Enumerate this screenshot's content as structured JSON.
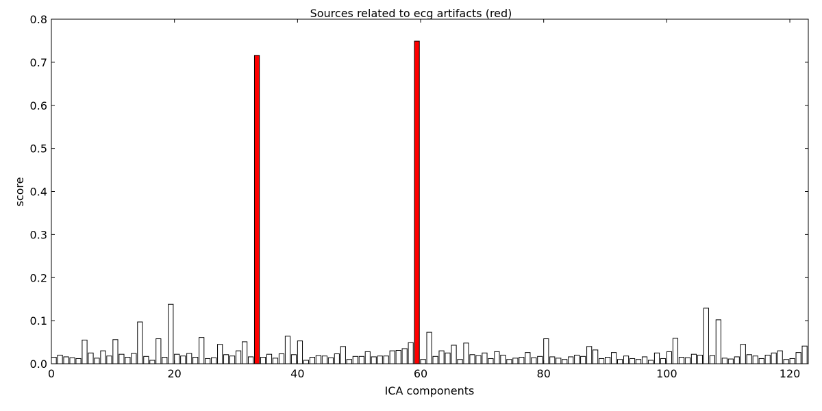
{
  "chart_data": {
    "type": "bar",
    "title": "Sources related to ecg artifacts (red)",
    "xlabel": "ICA components",
    "ylabel": "score",
    "xlim": [
      0,
      123
    ],
    "ylim": [
      0,
      0.8
    ],
    "xticks": [
      0,
      20,
      40,
      60,
      80,
      100,
      120
    ],
    "yticks": [
      0.0,
      0.1,
      0.2,
      0.3,
      0.4,
      0.5,
      0.6,
      0.7,
      0.8
    ],
    "ytick_labels": [
      "0.0",
      "0.1",
      "0.2",
      "0.3",
      "0.4",
      "0.5",
      "0.6",
      "0.7",
      "0.8"
    ],
    "grid": false,
    "bar_color": "#ffffff",
    "highlight_color": "#ff0000",
    "edge_color": "#000000",
    "highlighted_indices": [
      33,
      59
    ],
    "values": [
      0.015,
      0.02,
      0.016,
      0.014,
      0.012,
      0.055,
      0.025,
      0.013,
      0.03,
      0.018,
      0.056,
      0.022,
      0.015,
      0.024,
      0.097,
      0.017,
      0.008,
      0.058,
      0.015,
      0.138,
      0.022,
      0.018,
      0.024,
      0.015,
      0.061,
      0.012,
      0.014,
      0.045,
      0.021,
      0.018,
      0.03,
      0.051,
      0.016,
      0.716,
      0.015,
      0.022,
      0.013,
      0.023,
      0.064,
      0.021,
      0.053,
      0.008,
      0.015,
      0.019,
      0.018,
      0.014,
      0.023,
      0.04,
      0.01,
      0.017,
      0.017,
      0.028,
      0.016,
      0.018,
      0.018,
      0.03,
      0.031,
      0.035,
      0.049,
      0.749,
      0.01,
      0.073,
      0.017,
      0.03,
      0.025,
      0.043,
      0.01,
      0.048,
      0.021,
      0.019,
      0.025,
      0.012,
      0.028,
      0.02,
      0.01,
      0.013,
      0.015,
      0.026,
      0.014,
      0.017,
      0.058,
      0.016,
      0.013,
      0.01,
      0.016,
      0.02,
      0.017,
      0.04,
      0.032,
      0.012,
      0.015,
      0.026,
      0.01,
      0.018,
      0.012,
      0.01,
      0.016,
      0.008,
      0.025,
      0.012,
      0.028,
      0.059,
      0.015,
      0.014,
      0.022,
      0.02,
      0.129,
      0.019,
      0.102,
      0.013,
      0.011,
      0.016,
      0.045,
      0.021,
      0.018,
      0.012,
      0.02,
      0.025,
      0.03,
      0.01,
      0.012,
      0.026,
      0.041
    ]
  }
}
